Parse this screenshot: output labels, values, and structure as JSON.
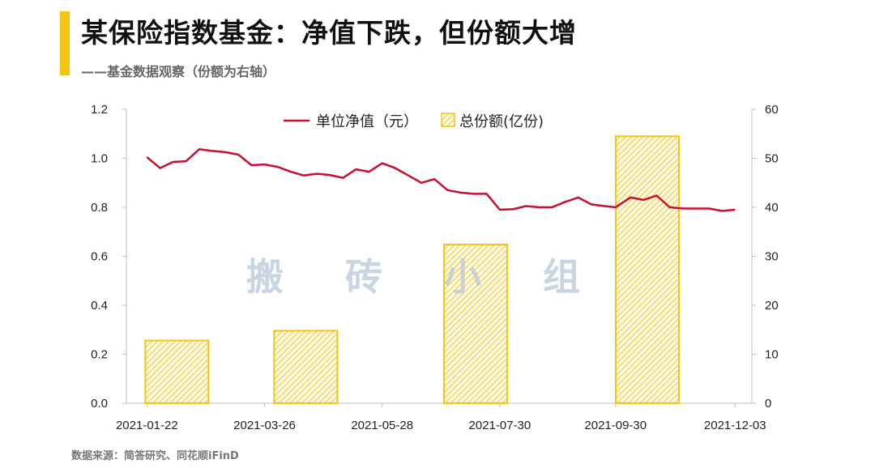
{
  "header": {
    "title": "某保险指数基金：净值下跌，但份额大增",
    "subtitle": "——基金数据观察（份额为右轴）"
  },
  "footer": {
    "source": "数据来源：简答研究、同花顺iFinD"
  },
  "watermark": "搬 砖 小 组",
  "colors": {
    "line": "#c8102e",
    "bar_edge": "#f5c316",
    "bar_hatch": "#f5c316",
    "accent": "#f5c316"
  },
  "chart_data": {
    "type": "bar+line",
    "title": "",
    "left_axis": {
      "ylim": [
        0,
        1.2
      ],
      "ticks": [
        "0.0",
        "0.2",
        "0.4",
        "0.6",
        "0.8",
        "1.0",
        "1.2"
      ]
    },
    "right_axis": {
      "ylim": [
        0,
        60
      ],
      "ticks": [
        "0",
        "10",
        "20",
        "30",
        "40",
        "50",
        "60"
      ]
    },
    "x_ticks": [
      "2021-01-22",
      "2021-03-26",
      "2021-05-28",
      "2021-07-30",
      "2021-09-30",
      "2021-12-03"
    ],
    "legend": {
      "placement": "top-center",
      "line_label": "单位净值（元）",
      "bar_label": "总份额(亿份)"
    },
    "bars": {
      "name": "总份额(亿份)",
      "axis": "right",
      "dates": [
        "2021-01-22",
        "2021-04-01",
        "2021-07-01",
        "2021-10-01"
      ],
      "values": [
        12.8,
        14.8,
        32.4,
        54.5
      ]
    },
    "line": {
      "name": "单位净值（元）",
      "axis": "left",
      "dates": [
        "2021-01-22",
        "2021-01-29",
        "2021-02-05",
        "2021-02-12",
        "2021-02-19",
        "2021-02-26",
        "2021-03-05",
        "2021-03-12",
        "2021-03-19",
        "2021-03-26",
        "2021-04-02",
        "2021-04-09",
        "2021-04-16",
        "2021-04-23",
        "2021-04-30",
        "2021-05-07",
        "2021-05-14",
        "2021-05-21",
        "2021-05-28",
        "2021-06-04",
        "2021-06-11",
        "2021-06-18",
        "2021-06-25",
        "2021-07-02",
        "2021-07-09",
        "2021-07-16",
        "2021-07-23",
        "2021-07-30",
        "2021-08-06",
        "2021-08-13",
        "2021-08-20",
        "2021-08-27",
        "2021-09-03",
        "2021-09-10",
        "2021-09-17",
        "2021-09-24",
        "2021-09-30",
        "2021-10-08",
        "2021-10-15",
        "2021-10-22",
        "2021-10-29",
        "2021-11-05",
        "2021-11-12",
        "2021-11-19",
        "2021-11-26",
        "2021-12-03"
      ],
      "values": [
        1.005,
        0.96,
        0.985,
        0.988,
        1.037,
        1.03,
        1.025,
        1.015,
        0.972,
        0.975,
        0.965,
        0.945,
        0.93,
        0.937,
        0.932,
        0.92,
        0.955,
        0.945,
        0.98,
        0.96,
        0.93,
        0.9,
        0.915,
        0.87,
        0.86,
        0.855,
        0.855,
        0.79,
        0.792,
        0.805,
        0.8,
        0.8,
        0.822,
        0.84,
        0.812,
        0.805,
        0.8,
        0.84,
        0.83,
        0.848,
        0.8,
        0.795,
        0.795,
        0.795,
        0.785,
        0.79
      ]
    }
  }
}
